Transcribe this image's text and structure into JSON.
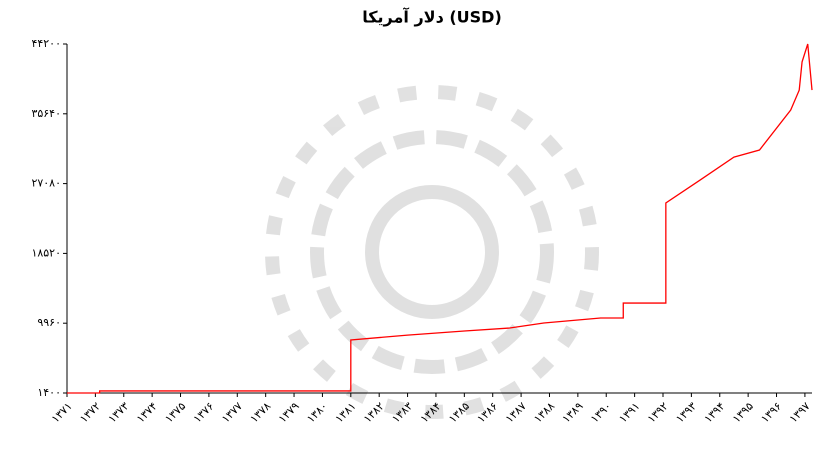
{
  "chart_data": {
    "type": "line",
    "title": "دلار آمریکا (USD)",
    "x": [
      1371,
      1372.15,
      1372.15,
      1376.7,
      1381,
      1381,
      1383,
      1385,
      1386.6,
      1387.8,
      1389.8,
      1390.6,
      1390.6,
      1392.1,
      1392.1,
      1393.3,
      1394.5,
      1395.4,
      1396.5,
      1396.8,
      1396.9,
      1397.1,
      1397.25
    ],
    "values": [
      1400,
      1400,
      1650,
      1650,
      1650,
      7900,
      8500,
      9000,
      9370,
      9980,
      10600,
      10600,
      12430,
      12430,
      24700,
      27500,
      30330,
      31200,
      36100,
      38550,
      42000,
      44200,
      38550
    ],
    "color": "#ff0000",
    "xlim": [
      1371,
      1397.25
    ],
    "ylim": [
      1400,
      44200
    ],
    "yticks": [
      {
        "value": 1400,
        "label": "۱۴۰۰"
      },
      {
        "value": 9960,
        "label": "۹۹۶۰"
      },
      {
        "value": 18520,
        "label": "۱۸۵۲۰"
      },
      {
        "value": 27080,
        "label": "۲۷۰۸۰"
      },
      {
        "value": 35640,
        "label": "۳۵۶۴۰"
      },
      {
        "value": 44200,
        "label": "۴۴۲۰۰"
      }
    ],
    "xticks": [
      {
        "value": 1371,
        "label": "۱۳۷۱"
      },
      {
        "value": 1372,
        "label": "۱۳۷۲"
      },
      {
        "value": 1373,
        "label": "۱۳۷۳"
      },
      {
        "value": 1374,
        "label": "۱۳۷۴"
      },
      {
        "value": 1375,
        "label": "۱۳۷۵"
      },
      {
        "value": 1376,
        "label": "۱۳۷۶"
      },
      {
        "value": 1377,
        "label": "۱۳۷۷"
      },
      {
        "value": 1378,
        "label": "۱۳۷۸"
      },
      {
        "value": 1379,
        "label": "۱۳۷۹"
      },
      {
        "value": 1380,
        "label": "۱۳۸۰"
      },
      {
        "value": 1381,
        "label": "۱۳۸۱"
      },
      {
        "value": 1382,
        "label": "۱۳۸۲"
      },
      {
        "value": 1383,
        "label": "۱۳۸۳"
      },
      {
        "value": 1384,
        "label": "۱۳۸۴"
      },
      {
        "value": 1385,
        "label": "۱۳۸۵"
      },
      {
        "value": 1386,
        "label": "۱۳۸۶"
      },
      {
        "value": 1387,
        "label": "۱۳۸۷"
      },
      {
        "value": 1388,
        "label": "۱۳۸۸"
      },
      {
        "value": 1389,
        "label": "۱۳۸۹"
      },
      {
        "value": 1390,
        "label": "۱۳۹۰"
      },
      {
        "value": 1391,
        "label": "۱۳۹۱"
      },
      {
        "value": 1392,
        "label": "۱۳۹۲"
      },
      {
        "value": 1393,
        "label": "۱۳۹۳"
      },
      {
        "value": 1394,
        "label": "۱۳۹۴"
      },
      {
        "value": 1395,
        "label": "۱۳۹۵"
      },
      {
        "value": 1396,
        "label": "۱۳۹۶"
      },
      {
        "value": 1397,
        "label": "۱۳۹۷"
      }
    ]
  }
}
